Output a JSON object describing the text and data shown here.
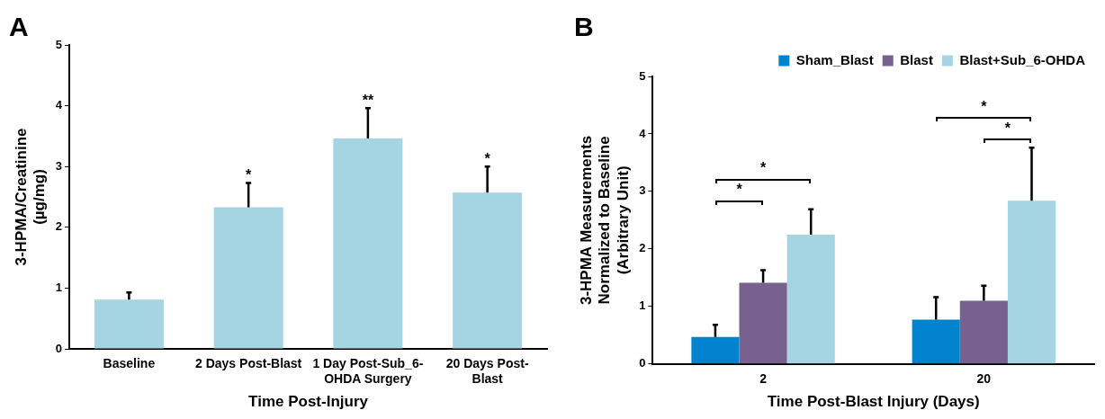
{
  "chart_data": [
    {
      "type": "bar",
      "title": "A",
      "categories": [
        "Baseline",
        "2 Days Post-Blast",
        "1 Day Post-Sub_6-OHDA Surgery",
        "20 Days Post-Blast"
      ],
      "values": [
        0.81,
        2.33,
        3.46,
        2.57
      ],
      "color": "#a5d5e3",
      "errors": [
        [
          0.81,
          0.93
        ],
        [
          2.33,
          2.73
        ],
        [
          3.46,
          3.96
        ],
        [
          2.57,
          3.0
        ]
      ],
      "ylim": [
        0,
        5
      ],
      "yticks": [
        0,
        1,
        2,
        3,
        4,
        5
      ],
      "grid": false,
      "legend": false,
      "xlabel": "Time Post-Injury",
      "ylabel": "3-HPMA/Creatinine\n(µg/mg)",
      "annotations": [
        "*",
        "**",
        "*"
      ]
    },
    {
      "type": "bar",
      "title": "B",
      "categories": [
        "2",
        "20"
      ],
      "series": [
        {
          "name": "Sham_Blast",
          "color": "#0283cf",
          "values": [
            0.47,
            0.77
          ],
          "errors": [
            [
              0.47,
              0.68
            ],
            [
              0.77,
              1.16
            ]
          ]
        },
        {
          "name": "Blast",
          "color": "#77628f",
          "values": [
            1.41,
            1.1
          ],
          "errors": [
            [
              1.41,
              1.63
            ],
            [
              1.1,
              1.36
            ]
          ]
        },
        {
          "name": "Blast+Sub_6-OHDA",
          "color": "#a5d5e3",
          "values": [
            2.25,
            2.84
          ],
          "errors": [
            [
              2.25,
              2.69
            ],
            [
              2.84,
              3.76
            ]
          ]
        }
      ],
      "ylim": [
        0,
        5
      ],
      "yticks": [
        0,
        1,
        2,
        3,
        4,
        5
      ],
      "grid": false,
      "legend": "top",
      "xlabel": "Time Post-Blast Injury (Days)",
      "ylabel": "3-HPMA Measurements\nNormalized to Baseline\n(Arbitrary Unit)",
      "annotations": [
        "*",
        "*",
        "*",
        "*"
      ]
    }
  ]
}
